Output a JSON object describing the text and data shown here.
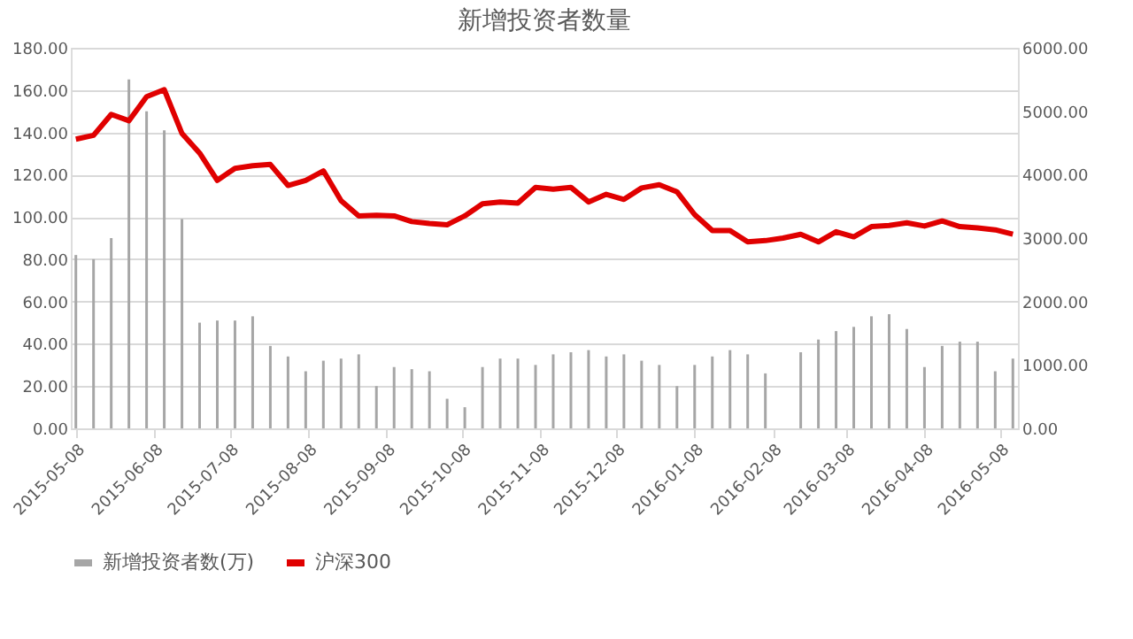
{
  "chart_data": {
    "type": "bar",
    "title": "新增投资者数量",
    "x": [
      "2015-05-08",
      "2015-05-15",
      "2015-05-22",
      "2015-05-29",
      "2015-06-05",
      "2015-06-12",
      "2015-06-19",
      "2015-06-26",
      "2015-07-03",
      "2015-07-10",
      "2015-07-17",
      "2015-07-24",
      "2015-07-31",
      "2015-08-07",
      "2015-08-14",
      "2015-08-21",
      "2015-08-28",
      "2015-09-04",
      "2015-09-11",
      "2015-09-18",
      "2015-09-25",
      "2015-10-02",
      "2015-10-09",
      "2015-10-16",
      "2015-10-23",
      "2015-10-30",
      "2015-11-06",
      "2015-11-13",
      "2015-11-20",
      "2015-11-27",
      "2015-12-04",
      "2015-12-11",
      "2015-12-18",
      "2015-12-25",
      "2016-01-01",
      "2016-01-08",
      "2016-01-15",
      "2016-01-22",
      "2016-01-29",
      "2016-02-05",
      "2016-02-12",
      "2016-02-19",
      "2016-02-26",
      "2016-03-04",
      "2016-03-11",
      "2016-03-18",
      "2016-03-25",
      "2016-04-01",
      "2016-04-08",
      "2016-04-15",
      "2016-04-22",
      "2016-04-29",
      "2016-05-06",
      "2016-05-13"
    ],
    "series": [
      {
        "name": "新增投资者数(万)",
        "color": "#a6a6a6",
        "values": [
          82,
          80,
          90,
          165,
          150,
          141,
          99,
          50,
          51,
          51,
          53,
          39,
          34,
          27,
          32,
          33,
          35,
          20,
          29,
          28,
          27,
          14,
          10,
          29,
          33,
          33,
          30,
          35,
          36,
          37,
          34,
          35,
          32,
          30,
          20,
          30,
          34,
          37,
          35,
          26,
          null,
          36,
          42,
          46,
          48,
          53,
          54,
          47,
          29,
          39,
          41,
          41,
          27,
          33
        ]
      },
      {
        "name": "沪深300",
        "type": "line",
        "axis": "y2",
        "color": "#e00000",
        "values": [
          4560,
          4620,
          4950,
          4850,
          5230,
          5340,
          4650,
          4340,
          3910,
          4100,
          4140,
          4160,
          3830,
          3910,
          4060,
          3590,
          3350,
          3360,
          3350,
          3260,
          3230,
          3210,
          3350,
          3540,
          3570,
          3550,
          3800,
          3770,
          3800,
          3570,
          3690,
          3610,
          3790,
          3840,
          3730,
          3370,
          3120,
          3120,
          2940,
          2960,
          3000,
          3060,
          2940,
          3100,
          3020,
          3180,
          3200,
          3240,
          3190,
          3270,
          3180,
          3160,
          3130,
          3060
        ]
      }
    ],
    "xlim": [
      "2015-05-06",
      "2016-05-15"
    ],
    "xticks": [
      "2015-05-08",
      "2015-06-08",
      "2015-07-08",
      "2015-08-08",
      "2015-09-08",
      "2015-10-08",
      "2015-11-08",
      "2015-12-08",
      "2016-01-08",
      "2016-02-08",
      "2016-03-08",
      "2016-04-08",
      "2016-05-08"
    ],
    "ylim": [
      0,
      180
    ],
    "yticks": [
      {
        "value": 0,
        "label": "0.00"
      },
      {
        "value": 20,
        "label": "20.00"
      },
      {
        "value": 40,
        "label": "40.00"
      },
      {
        "value": 60,
        "label": "60.00"
      },
      {
        "value": 80,
        "label": "80.00"
      },
      {
        "value": 100,
        "label": "100.00"
      },
      {
        "value": 120,
        "label": "120.00"
      },
      {
        "value": 140,
        "label": "140.00"
      },
      {
        "value": 160,
        "label": "160.00"
      },
      {
        "value": 180,
        "label": "180.00"
      }
    ],
    "y2lim": [
      0,
      6000
    ],
    "y2ticks": [
      {
        "value": 0,
        "label": "0.00"
      },
      {
        "value": 1000,
        "label": "1000.00"
      },
      {
        "value": 2000,
        "label": "2000.00"
      },
      {
        "value": 3000,
        "label": "3000.00"
      },
      {
        "value": 4000,
        "label": "4000.00"
      },
      {
        "value": 5000,
        "label": "5000.00"
      },
      {
        "value": 6000,
        "label": "6000.00"
      }
    ],
    "grid": "y",
    "legend": "bottom",
    "line_style": "solid",
    "marker": "none"
  }
}
